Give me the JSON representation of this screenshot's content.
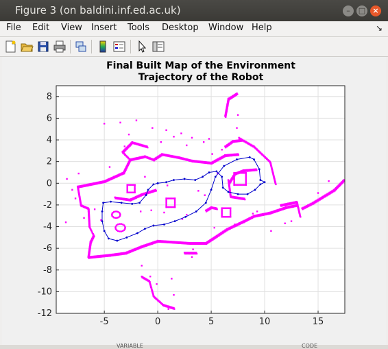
{
  "window": {
    "title": "Figure 3 (on baldini.inf.ed.ac.uk)"
  },
  "menu": [
    "File",
    "Edit",
    "View",
    "Insert",
    "Tools",
    "Desktop",
    "Window",
    "Help"
  ],
  "toolbar_icons": [
    "new-figure-icon",
    "open-file-icon",
    "save-icon",
    "print-icon",
    "link-icon",
    "colorbar-icon",
    "legend-icon",
    "pointer-icon",
    "property-editor-icon"
  ],
  "colors": {
    "map": "#ff00ff",
    "trajectory": "#0000cc"
  },
  "bottom_labels": [
    "VARIABLE",
    "CODE"
  ],
  "chart_data": {
    "type": "scatter",
    "title": "Final Built Map of the Environment",
    "subtitle": "Trajectory of the Robot",
    "xlim": [
      -9.5,
      17.5
    ],
    "ylim": [
      -12,
      9
    ],
    "xticks": [
      -5,
      0,
      5,
      10,
      15
    ],
    "yticks": [
      8,
      6,
      4,
      2,
      0,
      -2,
      -4,
      -6,
      -8,
      -10,
      -12
    ],
    "grid": true,
    "series": [
      {
        "style": "map-points",
        "color": "#ff00ff",
        "polylines": [
          [
            [
              -7.5,
              -0.3
            ],
            [
              -5,
              0.2
            ],
            [
              -3.2,
              1
            ],
            [
              -2.6,
              2.2
            ],
            [
              -1.2,
              2.5
            ],
            [
              -0.4,
              2.2
            ],
            [
              0.4,
              2.7
            ],
            [
              2,
              2.4
            ],
            [
              3.2,
              2.1
            ],
            [
              5,
              1.9
            ],
            [
              6.3,
              2.6
            ],
            [
              7.5,
              2.7
            ]
          ],
          [
            [
              -7.5,
              -0.3
            ],
            [
              -7.2,
              -2
            ],
            [
              -6.5,
              -2.3
            ],
            [
              -6.4,
              -4
            ],
            [
              -6,
              -4.8
            ],
            [
              -6.3,
              -5.4
            ],
            [
              -6.5,
              -6.8
            ],
            [
              -4.5,
              -6.6
            ],
            [
              -3,
              -6.4
            ],
            [
              -1.5,
              -5.8
            ],
            [
              0,
              -5.3
            ],
            [
              1.5,
              -5.4
            ],
            [
              3,
              -5.5
            ],
            [
              4.5,
              -5.5
            ],
            [
              6.5,
              -4.2
            ],
            [
              8,
              -3.5
            ],
            [
              9,
              -3
            ],
            [
              10.5,
              -2.7
            ],
            [
              12,
              -2.2
            ],
            [
              13,
              -2
            ]
          ],
          [
            [
              -2.6,
              2.2
            ],
            [
              -3.3,
              2.9
            ],
            [
              -2.4,
              3.8
            ],
            [
              -1,
              3.4
            ]
          ],
          [
            [
              6.3,
              6.2
            ],
            [
              6.6,
              7.8
            ],
            [
              7.4,
              8.3
            ]
          ],
          [
            [
              7.6,
              4.2
            ],
            [
              9,
              3.4
            ],
            [
              10.5,
              2
            ],
            [
              11,
              0
            ]
          ],
          [
            [
              6.3,
              3.4
            ],
            [
              7,
              3.9
            ],
            [
              7.8,
              4
            ]
          ],
          [
            [
              6.6,
              0.3
            ],
            [
              6.8,
              -1.2
            ],
            [
              8.1,
              -1.4
            ]
          ],
          [
            [
              11.5,
              -2
            ],
            [
              13,
              -1.7
            ],
            [
              13.3,
              -3
            ]
          ],
          [
            [
              13.5,
              -2.3
            ],
            [
              14.5,
              -1.8
            ],
            [
              16.5,
              -0.6
            ],
            [
              17.4,
              0.3
            ]
          ],
          [
            [
              -4,
              -1.3
            ],
            [
              -2.6,
              -1.5
            ],
            [
              -1.5,
              -1
            ],
            [
              -0.2,
              -0.6
            ]
          ],
          [
            [
              6.7,
              0.1
            ],
            [
              7.2,
              0.9
            ],
            [
              8,
              1.2
            ],
            [
              9.2,
              1.3
            ]
          ],
          [
            [
              4.5,
              -2.5
            ],
            [
              5,
              -2.2
            ],
            [
              5.5,
              -2.3
            ]
          ],
          [
            [
              2.5,
              -6.4
            ],
            [
              3.6,
              -6.4
            ]
          ],
          [
            [
              -1.5,
              -8.6
            ],
            [
              -0.8,
              -9
            ],
            [
              -0.4,
              -10.4
            ],
            [
              0.5,
              -11.2
            ],
            [
              1.5,
              -11.5
            ]
          ]
        ],
        "squares": [
          {
            "center": [
              7.7,
              0.4
            ],
            "size": 1.1
          },
          {
            "center": [
              1.2,
              -1.8
            ],
            "size": 0.8
          },
          {
            "center": [
              6.4,
              -2.7
            ],
            "size": 0.8
          },
          {
            "center": [
              -2.5,
              -0.5
            ],
            "size": 0.7
          }
        ],
        "circles": [
          {
            "center": [
              -3.5,
              -4.1
            ],
            "r": 0.35
          },
          {
            "center": [
              -3.9,
              -2.9
            ],
            "r": 0.3
          }
        ],
        "scatter": [
          [
            -3.5,
            5.6
          ],
          [
            -5,
            5.5
          ],
          [
            -2.7,
            4.5
          ],
          [
            -2,
            5.8
          ],
          [
            -0.5,
            5.1
          ],
          [
            0.8,
            4.9
          ],
          [
            1.5,
            4.3
          ],
          [
            2.2,
            4.6
          ],
          [
            3.2,
            4.2
          ],
          [
            4.3,
            3.8
          ],
          [
            -8,
            -0.6
          ],
          [
            -8.6,
            -3.6
          ],
          [
            -6.9,
            -3.2
          ],
          [
            -5.3,
            -3.4
          ],
          [
            0.3,
            3.8
          ],
          [
            2.7,
            3.5
          ],
          [
            -1.5,
            -7.6
          ],
          [
            -0.7,
            -8.6
          ],
          [
            1.3,
            -8.8
          ],
          [
            3.2,
            -6.8
          ],
          [
            -4.5,
            1.5
          ],
          [
            5.6,
            0.9
          ],
          [
            3.8,
            -0.7
          ],
          [
            4.4,
            -1.1
          ],
          [
            2.7,
            -2.9
          ],
          [
            0.6,
            -2.7
          ],
          [
            7.2,
            -3.8
          ],
          [
            9.3,
            -2.6
          ],
          [
            10.6,
            -4.4
          ],
          [
            11.9,
            -3.7
          ],
          [
            -7.4,
            0.9
          ],
          [
            -8.5,
            0.4
          ],
          [
            6,
            3.1
          ],
          [
            5.1,
            2.7
          ],
          [
            -1.6,
            -2.6
          ],
          [
            3.3,
            -6.1
          ],
          [
            1.5,
            -10.3
          ],
          [
            1,
            -11.6
          ],
          [
            -0.1,
            -9.3
          ],
          [
            8.9,
            -2.8
          ],
          [
            -3.1,
            3.4
          ],
          [
            -5.9,
            -2.4
          ],
          [
            -7.7,
            -1.4
          ],
          [
            4.8,
            4.1
          ],
          [
            7.4,
            5.1
          ],
          [
            7.5,
            6.3
          ],
          [
            0.9,
            -0.2
          ],
          [
            2.3,
            -3.3
          ],
          [
            -0.6,
            -2.5
          ],
          [
            5.3,
            -4.1
          ],
          [
            16,
            0.2
          ],
          [
            15,
            -0.9
          ],
          [
            12.5,
            -3.5
          ],
          [
            -1.2,
            0.6
          ]
        ]
      },
      {
        "style": "trajectory",
        "color": "#0000cc",
        "points": [
          [
            0,
            0
          ],
          [
            0.8,
            0.1
          ],
          [
            1.5,
            0.3
          ],
          [
            2.5,
            0.4
          ],
          [
            3.5,
            0.3
          ],
          [
            4.2,
            0.6
          ],
          [
            4.8,
            1
          ],
          [
            5.5,
            1.1
          ],
          [
            6,
            0.6
          ],
          [
            6.1,
            -0.4
          ],
          [
            6.6,
            -0.8
          ],
          [
            7.5,
            -1
          ],
          [
            8.4,
            -1
          ],
          [
            9.1,
            -0.6
          ],
          [
            9.6,
            -0.1
          ],
          [
            10,
            0.1
          ],
          [
            9.6,
            0.3
          ],
          [
            9.5,
            1.3
          ],
          [
            9,
            2.2
          ],
          [
            8.6,
            2.4
          ],
          [
            7.4,
            2.2
          ],
          [
            6.2,
            1.6
          ],
          [
            5.4,
            0.6
          ],
          [
            5,
            -0.6
          ],
          [
            4.5,
            -1.8
          ],
          [
            3.6,
            -2.6
          ],
          [
            2.6,
            -3.1
          ],
          [
            1.6,
            -3.5
          ],
          [
            0.6,
            -3.8
          ],
          [
            -0.4,
            -3.9
          ],
          [
            -1.2,
            -4.2
          ],
          [
            -1.9,
            -4.6
          ],
          [
            -2.9,
            -5
          ],
          [
            -3.8,
            -5.3
          ],
          [
            -4.6,
            -5.1
          ],
          [
            -5,
            -4.4
          ],
          [
            -5.2,
            -3.5
          ],
          [
            -5.2,
            -2.6
          ],
          [
            -5.1,
            -1.8
          ],
          [
            -4.4,
            -1.7
          ],
          [
            -3.4,
            -1.8
          ],
          [
            -2.4,
            -1.9
          ],
          [
            -1.7,
            -1.8
          ],
          [
            -1.1,
            -1.1
          ],
          [
            -0.9,
            -0.6
          ],
          [
            -0.4,
            -0.1
          ],
          [
            0,
            0
          ]
        ]
      }
    ]
  }
}
